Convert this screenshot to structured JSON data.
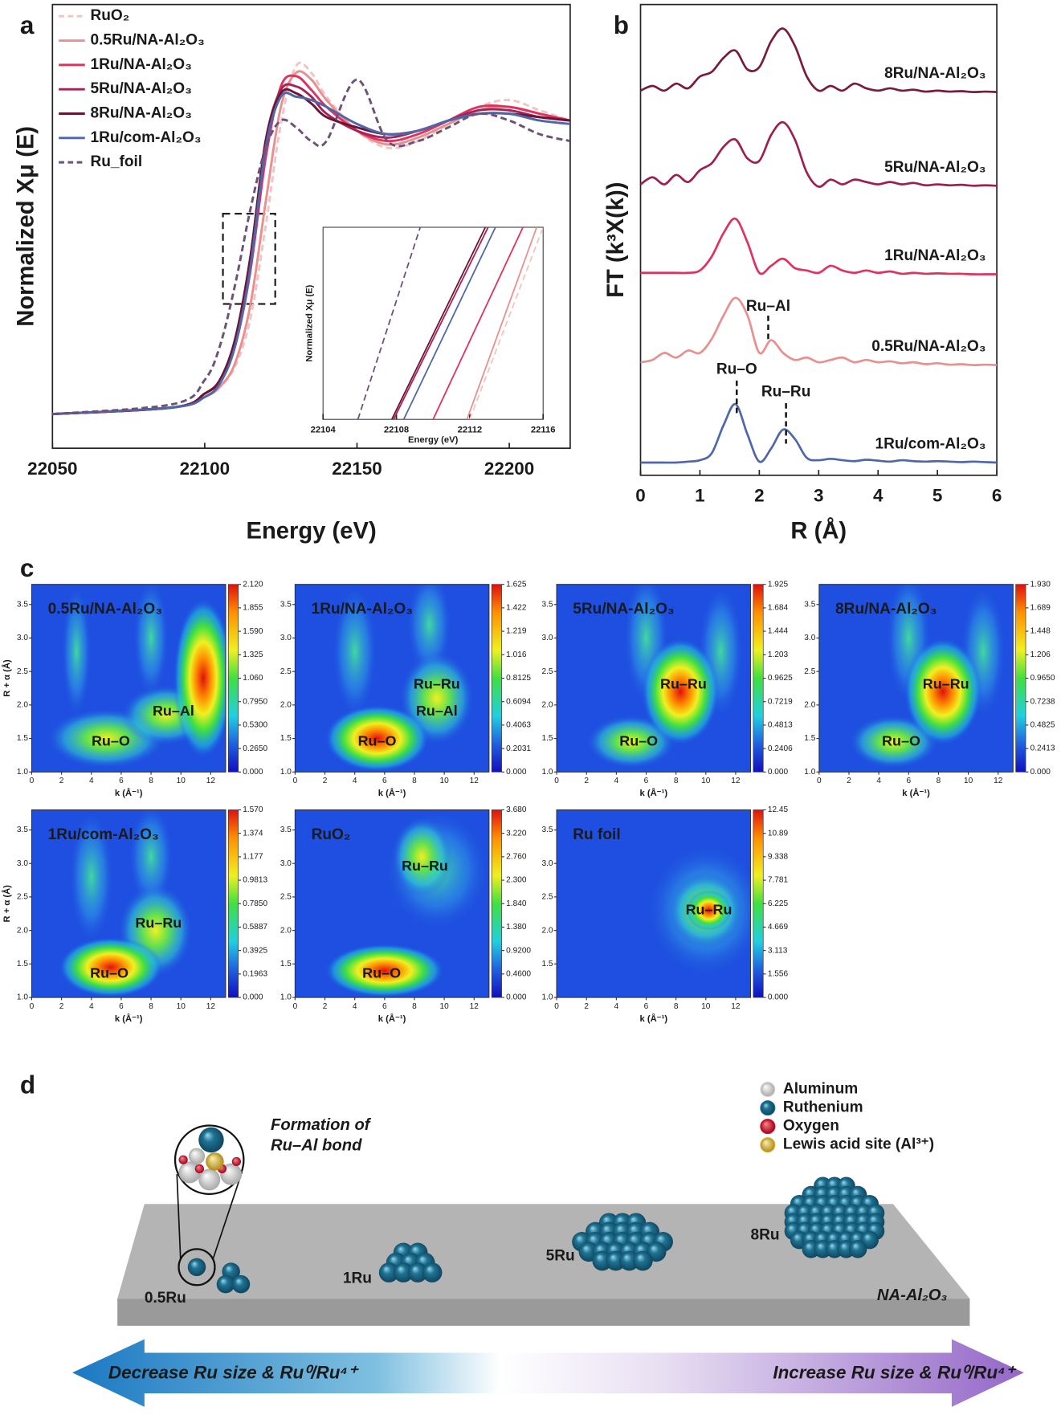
{
  "panel_labels": [
    "a",
    "b",
    "c",
    "d"
  ],
  "chart_data": [
    {
      "type": "line",
      "xlabel": "Energy (eV)",
      "ylabel": "Normalized Xμ (E)",
      "legend": "upper left",
      "xlim": [
        22050,
        22220
      ],
      "xticks": [
        22050,
        22100,
        22150,
        22200
      ],
      "ylim": [
        -0.1,
        1.2
      ],
      "x": [
        22050,
        22090,
        22100,
        22105,
        22110,
        22115,
        22120,
        22125,
        22130,
        22135,
        22140,
        22150,
        22160,
        22170,
        22180,
        22190,
        22200,
        22210,
        22220
      ],
      "series": [
        {
          "name": "RuO₂",
          "color": "#f2c4c4",
          "dashed": true,
          "values": [
            0,
            0.02,
            0.05,
            0.08,
            0.14,
            0.28,
            0.55,
            0.85,
            1.02,
            1.0,
            0.93,
            0.83,
            0.78,
            0.8,
            0.85,
            0.9,
            0.92,
            0.89,
            0.86
          ]
        },
        {
          "name": "0.5Ru/NA-Al₂O₃",
          "color": "#e8908f",
          "values": [
            0,
            0.02,
            0.05,
            0.08,
            0.15,
            0.32,
            0.62,
            0.9,
            1.0,
            0.98,
            0.92,
            0.83,
            0.79,
            0.81,
            0.85,
            0.89,
            0.9,
            0.88,
            0.86
          ]
        },
        {
          "name": "1Ru/NA-Al₂O₃",
          "color": "#e0325e",
          "values": [
            0,
            0.02,
            0.06,
            0.1,
            0.2,
            0.42,
            0.75,
            0.96,
            0.99,
            0.95,
            0.9,
            0.83,
            0.8,
            0.82,
            0.86,
            0.9,
            0.9,
            0.88,
            0.86
          ]
        },
        {
          "name": "5Ru/NA-Al₂O₃",
          "color": "#a52356",
          "values": [
            0,
            0.02,
            0.06,
            0.1,
            0.22,
            0.46,
            0.8,
            0.95,
            0.96,
            0.93,
            0.88,
            0.83,
            0.81,
            0.83,
            0.86,
            0.89,
            0.89,
            0.87,
            0.86
          ]
        },
        {
          "name": "8Ru/NA-Al₂O₃",
          "color": "#6b1535",
          "values": [
            0,
            0.02,
            0.06,
            0.1,
            0.22,
            0.46,
            0.8,
            0.94,
            0.94,
            0.91,
            0.87,
            0.84,
            0.82,
            0.83,
            0.86,
            0.88,
            0.88,
            0.87,
            0.86
          ]
        },
        {
          "name": "1Ru/com-Al₂O₃",
          "color": "#4e67a8",
          "values": [
            0,
            0.02,
            0.05,
            0.09,
            0.2,
            0.43,
            0.78,
            0.93,
            0.93,
            0.92,
            0.9,
            0.85,
            0.82,
            0.83,
            0.86,
            0.88,
            0.88,
            0.86,
            0.85
          ]
        },
        {
          "name": "Ru_foil",
          "color": "#6c5178",
          "dashed": true,
          "values": [
            0,
            0.03,
            0.1,
            0.2,
            0.38,
            0.6,
            0.78,
            0.86,
            0.84,
            0.8,
            0.8,
            0.98,
            0.8,
            0.8,
            0.84,
            0.88,
            0.86,
            0.82,
            0.8
          ]
        }
      ]
    },
    {
      "type": "line",
      "xlabel": "Energy (eV)",
      "ylabel": "Normalized Xμ (E)",
      "xlim": [
        22104,
        22116
      ],
      "xticks": [
        22104,
        22108,
        22112,
        22116
      ],
      "ylim": [
        0,
        1
      ],
      "series": [
        {
          "color": "#f2c4c4",
          "dashed": true,
          "x": [
            22112.0,
            22116.0
          ],
          "values": [
            0,
            1
          ]
        },
        {
          "color": "#e8908f",
          "x": [
            22111.85,
            22115.65
          ],
          "values": [
            0,
            1
          ]
        },
        {
          "color": "#e0325e",
          "x": [
            22110.0,
            22114.9
          ],
          "values": [
            0,
            1
          ]
        },
        {
          "color": "#a52356",
          "x": [
            22107.85,
            22113.0
          ],
          "values": [
            0,
            1
          ]
        },
        {
          "color": "#6b1535",
          "x": [
            22107.75,
            22112.85
          ],
          "values": [
            0,
            1
          ]
        },
        {
          "color": "#4e67a8",
          "x": [
            22108.4,
            22113.4
          ],
          "values": [
            0,
            1
          ]
        },
        {
          "color": "#6c5178",
          "dashed": true,
          "x": [
            22105.9,
            22109.3
          ],
          "values": [
            0,
            1
          ]
        }
      ]
    },
    {
      "type": "line",
      "xlabel": "R (Å)",
      "ylabel": "FT (k³X(k))",
      "legend": "inline",
      "xlim": [
        0,
        6
      ],
      "xticks": [
        0,
        1,
        2,
        3,
        4,
        5,
        6
      ],
      "ylim": [
        0,
        10
      ],
      "x": [
        0,
        0.2,
        0.4,
        0.6,
        0.8,
        1,
        1.2,
        1.4,
        1.6,
        1.8,
        2,
        2.2,
        2.4,
        2.6,
        2.8,
        3,
        3.2,
        3.4,
        3.6,
        3.8,
        4,
        4.2,
        4.4,
        4.6,
        4.8,
        5,
        5.2,
        5.4,
        5.6,
        5.8,
        6
      ],
      "series": [
        {
          "name": "8Ru/NA-Al₂O₃",
          "color": "#7a1a3c",
          "values": [
            8.17,
            8.27,
            8.17,
            8.32,
            8.22,
            8.47,
            8.57,
            8.87,
            9.02,
            8.62,
            8.67,
            9.22,
            9.49,
            9.12,
            8.47,
            8.17,
            8.27,
            8.17,
            8.32,
            8.22,
            8.17,
            8.22,
            8.17,
            8.19,
            8.15,
            8.17,
            8.15,
            8.16,
            8.14,
            8.15,
            8.14
          ]
        },
        {
          "name": "5Ru/NA-Al₂O₃",
          "color": "#9e1f4f",
          "values": [
            6.18,
            6.33,
            6.18,
            6.38,
            6.23,
            6.48,
            6.63,
            6.98,
            7.13,
            6.73,
            6.68,
            7.23,
            7.5,
            7.13,
            6.43,
            6.13,
            6.28,
            6.18,
            6.28,
            6.23,
            6.18,
            6.23,
            6.18,
            6.21,
            6.16,
            6.18,
            6.16,
            6.17,
            6.15,
            6.16,
            6.15
          ]
        },
        {
          "name": "1Ru/NA-Al₂O₃",
          "color": "#e0325e",
          "values": [
            4.3,
            4.3,
            4.3,
            4.3,
            4.3,
            4.35,
            4.65,
            5.15,
            5.45,
            4.95,
            4.3,
            4.45,
            4.6,
            4.4,
            4.35,
            4.3,
            4.45,
            4.35,
            4.3,
            4.35,
            4.3,
            4.33,
            4.28,
            4.3,
            4.28,
            4.29,
            4.28,
            4.28,
            4.27,
            4.27,
            4.27
          ]
        },
        {
          "name": "0.5Ru/NA-Al₂O₃",
          "color": "#e8908f",
          "values": [
            2.4,
            2.45,
            2.6,
            2.5,
            2.65,
            2.6,
            2.9,
            3.4,
            3.77,
            3.4,
            2.6,
            2.87,
            2.6,
            2.45,
            2.5,
            2.4,
            2.45,
            2.5,
            2.4,
            2.45,
            2.4,
            2.42,
            2.38,
            2.4,
            2.36,
            2.38,
            2.35,
            2.36,
            2.34,
            2.35,
            2.34
          ]
        },
        {
          "name": "1Ru/com-Al₂O₃",
          "color": "#4e67a8",
          "values": [
            0.27,
            0.27,
            0.27,
            0.27,
            0.29,
            0.32,
            0.47,
            1.07,
            1.51,
            0.87,
            0.29,
            0.57,
            0.97,
            0.77,
            0.37,
            0.32,
            0.35,
            0.32,
            0.3,
            0.33,
            0.31,
            0.29,
            0.32,
            0.3,
            0.29,
            0.3,
            0.29,
            0.28,
            0.29,
            0.28,
            0.27
          ]
        }
      ],
      "annotations": [
        {
          "text": "Ru–Al",
          "x": 2.15
        },
        {
          "text": "Ru–O",
          "x": 1.62
        },
        {
          "text": "Ru–Ru",
          "x": 2.45
        }
      ]
    }
  ],
  "panel_c": {
    "xlabel": "k (Å⁻¹)",
    "ylabel": "R + α (Å)",
    "xlim": [
      0,
      13
    ],
    "xticks": [
      0,
      2,
      4,
      6,
      8,
      10,
      12
    ],
    "ylim": [
      1.0,
      3.8
    ],
    "yticks": [
      {
        "value": 1.0,
        "label": "1.0"
      },
      1.5,
      {
        "value": 2.0,
        "label": "2.0"
      },
      2.5,
      {
        "value": 3.0,
        "label": "3.0"
      },
      3.5
    ],
    "maps": [
      {
        "label": "0.5Ru/NA-Al₂O₃",
        "peaks": [
          "Ru–O",
          "Ru–Al"
        ],
        "colorbar_ticks": [
          {
            "value": 0,
            "label": "0.000"
          },
          {
            "value": 0.265,
            "label": "0.2650"
          },
          {
            "value": 0.53,
            "label": "0.5300"
          },
          {
            "value": 0.795,
            "label": "0.7950"
          },
          {
            "value": 1.06,
            "label": "1.060"
          },
          1.325,
          {
            "value": 1.59,
            "label": "1.590"
          },
          1.855,
          {
            "value": 2.12,
            "label": "2.120"
          }
        ]
      },
      {
        "label": "1Ru/NA-Al₂O₃",
        "peaks": [
          "Ru–O",
          "Ru–Ru",
          "Ru–Al"
        ],
        "colorbar_ticks": [
          {
            "value": 0,
            "label": "0.000"
          },
          0.2031,
          0.4063,
          0.6094,
          0.8125,
          1.016,
          1.219,
          1.422,
          1.625
        ]
      },
      {
        "label": "5Ru/NA-Al₂O₃",
        "peaks": [
          "Ru–O",
          "Ru–Ru"
        ],
        "colorbar_ticks": [
          {
            "value": 0,
            "label": "0.000"
          },
          0.2406,
          0.4813,
          0.7219,
          0.9625,
          1.203,
          1.444,
          1.684,
          1.925
        ]
      },
      {
        "label": "8Ru/NA-Al₂O₃",
        "peaks": [
          "Ru–O",
          "Ru–Ru"
        ],
        "colorbar_ticks": [
          {
            "value": 0,
            "label": "0.000"
          },
          0.2413,
          0.4825,
          0.7238,
          {
            "value": 0.965,
            "label": "0.9650"
          },
          1.206,
          1.448,
          1.689,
          {
            "value": 1.93,
            "label": "1.930"
          }
        ]
      },
      {
        "label": "1Ru/com-Al₂O₃",
        "peaks": [
          "Ru–O",
          "Ru–Ru"
        ],
        "colorbar_ticks": [
          {
            "value": 0,
            "label": "0.000"
          },
          0.1963,
          0.3925,
          0.5887,
          {
            "value": 0.785,
            "label": "0.7850"
          },
          0.9813,
          1.177,
          1.374,
          {
            "value": 1.57,
            "label": "1.570"
          }
        ]
      },
      {
        "label": "RuO₂",
        "peaks": [
          "Ru–O",
          "Ru–Ru"
        ],
        "colorbar_ticks": [
          {
            "value": 0,
            "label": "0.000"
          },
          {
            "value": 0.46,
            "label": "0.4600"
          },
          {
            "value": 0.92,
            "label": "0.9200"
          },
          {
            "value": 1.38,
            "label": "1.380"
          },
          {
            "value": 1.84,
            "label": "1.840"
          },
          {
            "value": 2.3,
            "label": "2.300"
          },
          {
            "value": 2.76,
            "label": "2.760"
          },
          {
            "value": 3.22,
            "label": "3.220"
          },
          {
            "value": 3.68,
            "label": "3.680"
          }
        ]
      },
      {
        "label": "Ru foil",
        "peaks": [
          "Ru–Ru"
        ],
        "colorbar_ticks": [
          {
            "value": 0,
            "label": "0.000"
          },
          1.556,
          3.113,
          4.669,
          6.225,
          7.781,
          9.338,
          10.89,
          12.45
        ]
      }
    ]
  },
  "panel_d": {
    "legend": [
      {
        "label": "Aluminum",
        "color": "#d8d8d8"
      },
      {
        "label": "Ruthenium",
        "color": "#1f7394"
      },
      {
        "label": "Oxygen",
        "color": "#d0102a"
      },
      {
        "label": "Lewis acid site (Al³⁺)",
        "color": "#d9b23a"
      }
    ],
    "inset_caption": [
      "Formation of",
      "Ru–Al bond"
    ],
    "clusters": [
      "0.5Ru",
      "1Ru",
      "5Ru",
      "8Ru"
    ],
    "support": "NA-Al₂O₃",
    "arrows": [
      "Decrease Ru size & Ru⁰/Ru⁴⁺",
      "Increase Ru size & Ru⁰/Ru⁴⁺"
    ]
  }
}
